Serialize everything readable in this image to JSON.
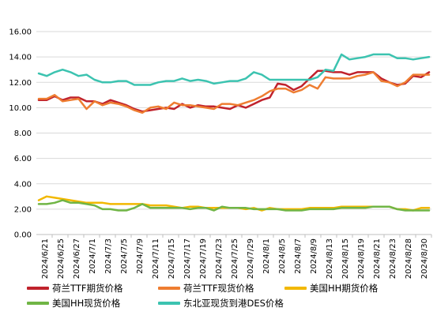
{
  "chart_data": {
    "type": "line",
    "ylim": [
      0,
      16
    ],
    "yticks": [
      "0.00",
      "2.00",
      "4.00",
      "6.00",
      "8.00",
      "10.00",
      "12.00",
      "14.00",
      "16.00"
    ],
    "x_tick_labels": [
      "2024/6/21",
      "2024/6/25",
      "2024/6/27",
      "2024/7/1",
      "2024/7/3",
      "2024/7/5",
      "2024/7/9",
      "2024/7/11",
      "2024/7/15",
      "2024/7/17",
      "2024/7/19",
      "2024/7/23",
      "2024/7/25",
      "2024/7/29",
      "2024/8/1",
      "2024/8/5",
      "2024/8/7",
      "2024/8/9",
      "2024/8/13",
      "2024/8/15",
      "2024/8/19",
      "2024/8/21",
      "2024/8/23",
      "2024/8/28",
      "2024/8/30"
    ],
    "n_points": 50,
    "grid": "horizontal",
    "legend_position": "bottom",
    "series": [
      {
        "name": "荷兰TTF期货价格",
        "color": "#c0222c",
        "values": [
          10.6,
          10.6,
          10.9,
          10.6,
          10.8,
          10.8,
          10.5,
          10.5,
          10.3,
          10.6,
          10.4,
          10.2,
          9.9,
          9.7,
          9.8,
          9.9,
          10.0,
          9.9,
          10.3,
          10.0,
          10.2,
          10.1,
          10.1,
          10.0,
          9.9,
          10.2,
          10.0,
          10.3,
          10.6,
          10.8,
          11.9,
          11.8,
          11.4,
          11.7,
          12.3,
          12.9,
          12.9,
          12.8,
          12.8,
          12.6,
          12.8,
          12.8,
          12.8,
          12.3,
          12.0,
          11.8,
          11.9,
          12.5,
          12.4,
          12.8
        ]
      },
      {
        "name": "荷兰TTF现货价格",
        "color": "#ee7d31",
        "values": [
          10.7,
          10.7,
          11.0,
          10.5,
          10.6,
          10.7,
          9.9,
          10.5,
          10.2,
          10.4,
          10.3,
          10.1,
          9.8,
          9.6,
          10.0,
          10.1,
          9.9,
          10.4,
          10.2,
          10.2,
          10.1,
          10.0,
          9.9,
          10.3,
          10.3,
          10.2,
          10.4,
          10.6,
          10.9,
          11.3,
          11.5,
          11.5,
          11.2,
          11.4,
          11.8,
          11.5,
          12.4,
          12.3,
          12.3,
          12.3,
          12.5,
          12.6,
          12.8,
          12.1,
          12.0,
          11.7,
          12.0,
          12.6,
          12.6,
          12.6
        ]
      },
      {
        "name": "美国HH期货价格",
        "color": "#f2b800",
        "values": [
          2.7,
          3.0,
          2.9,
          2.8,
          2.7,
          2.6,
          2.5,
          2.5,
          2.5,
          2.4,
          2.4,
          2.4,
          2.4,
          2.4,
          2.3,
          2.3,
          2.3,
          2.2,
          2.1,
          2.2,
          2.2,
          2.1,
          2.1,
          2.1,
          2.1,
          2.1,
          2.0,
          2.1,
          1.9,
          2.1,
          2.0,
          2.0,
          2.0,
          2.0,
          2.1,
          2.1,
          2.1,
          2.1,
          2.2,
          2.2,
          2.2,
          2.2,
          2.2,
          2.2,
          2.2,
          2.0,
          2.0,
          1.9,
          2.1,
          2.1
        ]
      },
      {
        "name": "美国HH现货价格",
        "color": "#70b545",
        "values": [
          2.4,
          2.4,
          2.5,
          2.7,
          2.5,
          2.5,
          2.4,
          2.3,
          2.0,
          2.0,
          1.9,
          1.9,
          2.1,
          2.4,
          2.1,
          2.1,
          2.1,
          2.1,
          2.1,
          2.0,
          2.1,
          2.1,
          1.9,
          2.2,
          2.1,
          2.1,
          2.1,
          2.0,
          2.0,
          2.0,
          2.0,
          1.9,
          1.9,
          1.9,
          2.0,
          2.0,
          2.0,
          2.0,
          2.1,
          2.1,
          2.1,
          2.1,
          2.2,
          2.2,
          2.2,
          2.0,
          1.9,
          1.9,
          1.9,
          1.9
        ]
      },
      {
        "name": "东北亚现货到港DES价格",
        "color": "#3cc3b0",
        "values": [
          12.7,
          12.5,
          12.8,
          13.0,
          12.8,
          12.5,
          12.6,
          12.2,
          12.0,
          12.0,
          12.1,
          12.1,
          11.8,
          11.8,
          11.8,
          12.0,
          12.1,
          12.1,
          12.3,
          12.1,
          12.2,
          12.1,
          11.9,
          12.0,
          12.1,
          12.1,
          12.3,
          12.8,
          12.6,
          12.2,
          12.2,
          12.2,
          12.2,
          12.2,
          12.2,
          12.4,
          13.0,
          12.9,
          14.2,
          13.8,
          13.9,
          14.0,
          14.2,
          14.2,
          14.2,
          13.9,
          13.9,
          13.8,
          13.9,
          14.0
        ]
      }
    ]
  }
}
